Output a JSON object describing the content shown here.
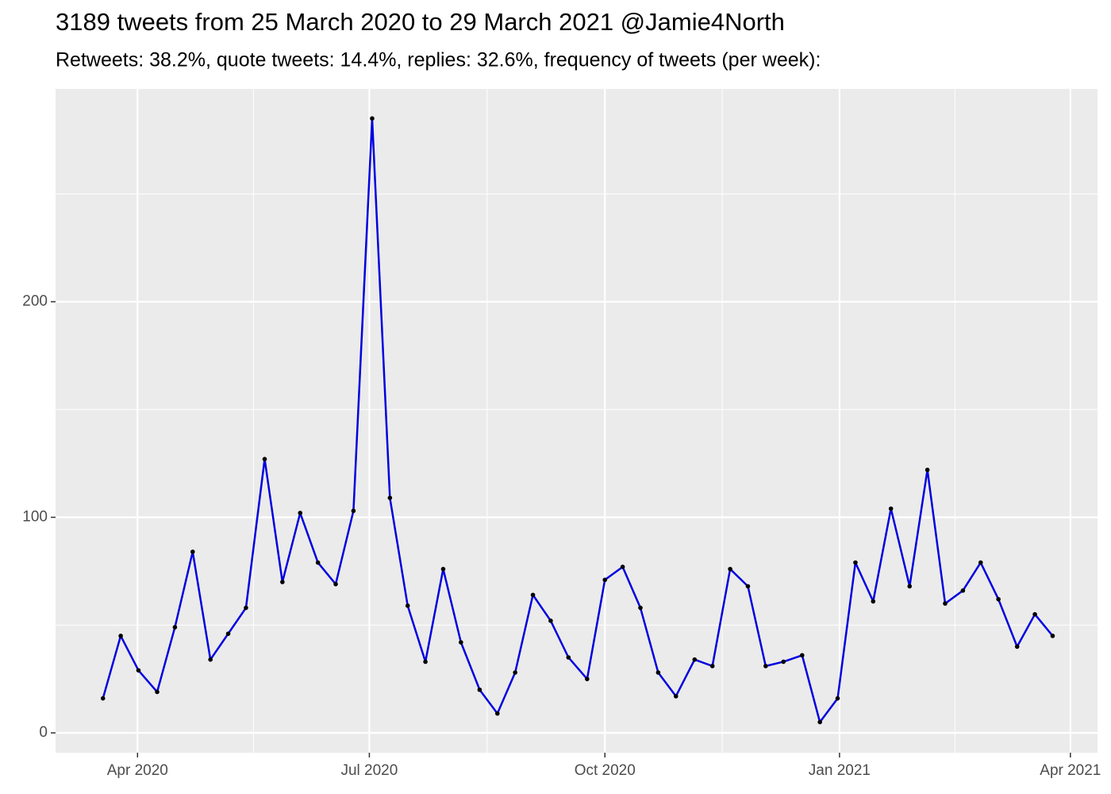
{
  "chart_data": {
    "type": "line",
    "title": "3189 tweets from 25 March 2020 to 29 March 2021 @Jamie4North",
    "subtitle": "Retweets: 38.2%, quote tweets: 14.4%, replies: 32.6%, frequency of tweets (per week):",
    "x": [
      2020.212,
      2020.231,
      2020.25,
      2020.27,
      2020.289,
      2020.308,
      2020.327,
      2020.346,
      2020.365,
      2020.385,
      2020.404,
      2020.423,
      2020.442,
      2020.461,
      2020.48,
      2020.5,
      2020.519,
      2020.538,
      2020.557,
      2020.576,
      2020.595,
      2020.615,
      2020.634,
      2020.653,
      2020.672,
      2020.691,
      2020.71,
      2020.73,
      2020.749,
      2020.768,
      2020.787,
      2020.806,
      2020.825,
      2020.845,
      2020.864,
      2020.883,
      2020.902,
      2020.921,
      2020.94,
      2020.96,
      2020.979,
      2020.998,
      2021.017,
      2021.036,
      2021.055,
      2021.075,
      2021.094,
      2021.113,
      2021.132,
      2021.151,
      2021.17,
      2021.19,
      2021.209,
      2021.228
    ],
    "series": [
      {
        "color": "#0000e0",
        "marker_color": "#000000",
        "values": [
          16,
          45,
          29,
          19,
          49,
          84,
          34,
          46,
          58,
          127,
          70,
          102,
          79,
          69,
          103,
          285,
          109,
          59,
          33,
          76,
          42,
          20,
          9,
          28,
          64,
          52,
          35,
          25,
          71,
          77,
          58,
          28,
          17,
          34,
          31,
          76,
          68,
          31,
          33,
          36,
          5,
          16,
          79,
          61,
          104,
          68,
          122,
          60,
          66,
          79,
          62,
          40,
          55,
          45
        ]
      }
    ],
    "xlim": [
      2020.1613,
      2021.276
    ],
    "xticks": [
      {
        "value": 2020.249,
        "label": "Apr 2020"
      },
      {
        "value": 2020.497,
        "label": "Jul 2020"
      },
      {
        "value": 2020.749,
        "label": "Oct 2020"
      },
      {
        "value": 2021.0,
        "label": "Jan 2021"
      },
      {
        "value": 2021.247,
        "label": "Apr 2021"
      }
    ],
    "ylim": [
      -9.2,
      298.7
    ],
    "yticks": [
      0,
      100,
      200
    ],
    "grid": true
  }
}
